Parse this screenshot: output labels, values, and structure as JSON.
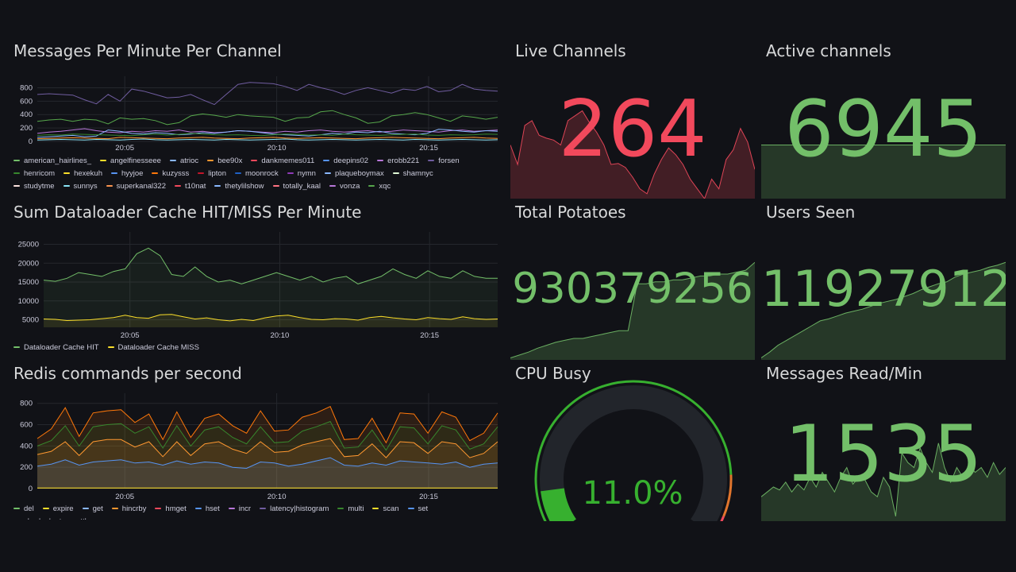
{
  "panels": {
    "messages_per_minute": {
      "title": "Messages Per Minute Per Channel",
      "legend": [
        {
          "name": "american_hairlines_",
          "color": "#73bf69"
        },
        {
          "name": "angelfinesseee",
          "color": "#fade2a"
        },
        {
          "name": "atrioc",
          "color": "#8ab8ff"
        },
        {
          "name": "bee90x",
          "color": "#ff9830"
        },
        {
          "name": "dankmemes011",
          "color": "#f2495c"
        },
        {
          "name": "deepins02",
          "color": "#5794f2"
        },
        {
          "name": "erobb221",
          "color": "#b877d9"
        },
        {
          "name": "forsen",
          "color": "#705da0"
        },
        {
          "name": "henricom",
          "color": "#37872d"
        },
        {
          "name": "hexekuh",
          "color": "#fade2a"
        },
        {
          "name": "hyyjoe",
          "color": "#5794f2"
        },
        {
          "name": "kuzysss",
          "color": "#ff780a"
        },
        {
          "name": "lipton",
          "color": "#c4162a"
        },
        {
          "name": "moonrock",
          "color": "#1f60c4"
        },
        {
          "name": "nymn",
          "color": "#8f3bb8"
        },
        {
          "name": "plaqueboymax",
          "color": "#8ab8ff"
        },
        {
          "name": "shamnyc",
          "color": "#e0f9d7"
        },
        {
          "name": "studytme",
          "color": "#fce2de"
        },
        {
          "name": "sunnys",
          "color": "#8ae5f7"
        },
        {
          "name": "superkanal322",
          "color": "#f9934e"
        },
        {
          "name": "t10nat",
          "color": "#f2495c"
        },
        {
          "name": "thetylilshow",
          "color": "#8ab8ff"
        },
        {
          "name": "totally_kaal",
          "color": "#ff7383"
        },
        {
          "name": "vonza",
          "color": "#b877d9"
        },
        {
          "name": "xqc",
          "color": "#56a64b"
        }
      ],
      "chart_data": {
        "type": "line",
        "y_ticks": [
          "800",
          "600",
          "400",
          "200",
          "0"
        ],
        "x_ticks": [
          "20:05",
          "20:10",
          "20:15"
        ],
        "ylim": [
          0,
          900
        ],
        "series": [
          {
            "name": "forsen",
            "color": "#705da0",
            "values": [
              700,
              710,
              700,
              690,
              620,
              560,
              700,
              600,
              780,
              750,
              700,
              650,
              660,
              700,
              620,
              550,
              700,
              850,
              880,
              870,
              860,
              820,
              760,
              850,
              800,
              760,
              700,
              760,
              800,
              760,
              720,
              780,
              760,
              820,
              740,
              760,
              850,
              780,
              760,
              750
            ]
          },
          {
            "name": "xqc",
            "color": "#56a64b",
            "values": [
              300,
              320,
              330,
              300,
              330,
              320,
              260,
              350,
              330,
              340,
              310,
              250,
              280,
              380,
              410,
              390,
              360,
              400,
              380,
              370,
              360,
              300,
              350,
              360,
              440,
              460,
              400,
              350,
              270,
              290,
              380,
              400,
              430,
              400,
              350,
              300,
              380,
              360,
              330,
              360
            ]
          },
          {
            "name": "erobb221",
            "color": "#b877d9",
            "values": [
              120,
              140,
              150,
              170,
              190,
              160,
              140,
              130,
              150,
              140,
              160,
              150,
              170,
              140,
              150,
              130,
              140,
              160,
              150,
              140,
              130,
              150,
              140,
              160,
              170,
              150,
              140,
              150,
              160,
              140,
              150,
              170,
              160,
              150,
              140,
              160,
              170,
              150,
              160,
              170
            ]
          },
          {
            "name": "atrioc",
            "color": "#8ab8ff",
            "values": [
              60,
              70,
              80,
              90,
              70,
              80,
              170,
              150,
              120,
              110,
              130,
              120,
              100,
              110,
              130,
              120,
              140,
              160,
              150,
              130,
              110,
              100,
              90,
              80,
              100,
              120,
              110,
              140,
              130,
              150,
              120,
              110,
              100,
              120,
              180,
              170,
              150,
              140,
              160,
              150
            ]
          },
          {
            "name": "henricom",
            "color": "#37872d",
            "values": [
              90,
              100,
              95,
              110,
              105,
              100,
              95,
              90,
              85,
              100,
              110,
              95,
              105,
              120,
              110,
              100,
              95,
              100,
              90,
              85,
              100,
              110,
              105,
              95,
              100,
              90,
              110,
              100,
              95,
              90,
              100,
              105,
              110,
              95,
              90,
              100,
              95,
              100,
              110,
              105
            ]
          },
          {
            "name": "bee90x",
            "color": "#ff9830",
            "values": [
              40,
              45,
              50,
              55,
              50,
              45,
              40,
              60,
              55,
              50,
              45,
              40,
              50,
              55,
              60,
              50,
              45,
              40,
              50,
              55,
              60,
              50,
              45,
              50,
              55,
              50,
              45,
              40,
              50,
              55,
              60,
              55,
              50,
              45,
              40,
              50,
              55,
              60,
              50,
              45
            ]
          },
          {
            "name": "sunnys",
            "color": "#8ae5f7",
            "values": [
              20,
              25,
              30,
              25,
              20,
              30,
              25,
              20,
              30,
              35,
              25,
              20,
              25,
              30,
              25,
              20,
              30,
              25,
              20,
              25,
              30,
              35,
              25,
              20,
              25,
              30,
              25,
              20,
              25,
              30,
              25,
              20,
              30,
              25,
              20,
              25,
              30,
              25,
              20,
              25
            ]
          }
        ]
      }
    },
    "dataloader": {
      "title": "Sum Dataloader Cache HIT/MISS Per Minute",
      "legend": [
        {
          "name": "Dataloader Cache HIT",
          "color": "#73bf69"
        },
        {
          "name": "Dataloader Cache MISS",
          "color": "#fade2a"
        }
      ],
      "chart_data": {
        "type": "area",
        "y_ticks": [
          "25000",
          "20000",
          "15000",
          "10000",
          "5000"
        ],
        "x_ticks": [
          "20:05",
          "20:10",
          "20:15"
        ],
        "ylim": [
          3000,
          27000
        ],
        "series": [
          {
            "name": "Dataloader Cache HIT",
            "color": "#73bf69",
            "values": [
              15500,
              15200,
              16000,
              17500,
              17000,
              16500,
              17800,
              18500,
              22500,
              24000,
              22000,
              17000,
              16500,
              19000,
              16500,
              15000,
              15500,
              14500,
              15500,
              16500,
              17500,
              16500,
              15500,
              16500,
              15000,
              16000,
              16500,
              14500,
              15500,
              16500,
              18500,
              17000,
              16000,
              18000,
              16500,
              16000,
              18000,
              16500,
              16000,
              16000
            ]
          },
          {
            "name": "Dataloader Cache MISS",
            "color": "#fade2a",
            "values": [
              5200,
              5100,
              4800,
              4900,
              5000,
              5300,
              5600,
              6200,
              5600,
              5400,
              6300,
              6400,
              5800,
              5200,
              5500,
              5000,
              4700,
              5100,
              4800,
              5500,
              6000,
              6200,
              5600,
              5100,
              5000,
              5300,
              5200,
              4900,
              5600,
              5900,
              5500,
              5200,
              5000,
              5600,
              5300,
              5100,
              5800,
              5300,
              5100,
              5200
            ]
          }
        ]
      }
    },
    "redis": {
      "title": "Redis commands per second",
      "legend": [
        {
          "name": "del",
          "color": "#73bf69"
        },
        {
          "name": "expire",
          "color": "#fade2a"
        },
        {
          "name": "get",
          "color": "#8ab8ff"
        },
        {
          "name": "hincrby",
          "color": "#ff9830"
        },
        {
          "name": "hmget",
          "color": "#f2495c"
        },
        {
          "name": "hset",
          "color": "#5794f2"
        },
        {
          "name": "incr",
          "color": "#b877d9"
        },
        {
          "name": "latency|histogram",
          "color": "#705da0"
        },
        {
          "name": "multi",
          "color": "#37872d"
        },
        {
          "name": "scan",
          "color": "#fade2a"
        },
        {
          "name": "set",
          "color": "#5794f2"
        },
        {
          "name": "slowlog|get",
          "color": "#ff780a"
        },
        {
          "name": "ttl",
          "color": "#c4162a"
        }
      ],
      "chart_data": {
        "type": "area",
        "y_ticks": [
          "800",
          "600",
          "400",
          "200",
          "0"
        ],
        "x_ticks": [
          "20:05",
          "20:10",
          "20:15"
        ],
        "ylim": [
          0,
          850
        ],
        "series": [
          {
            "name": "slowlog|get",
            "color": "#ff780a",
            "values": [
              470,
              560,
              760,
              490,
              710,
              730,
              740,
              620,
              700,
              460,
              720,
              480,
              660,
              700,
              590,
              520,
              730,
              540,
              550,
              670,
              710,
              770,
              460,
              470,
              660,
              430,
              710,
              700,
              520,
              720,
              670,
              450,
              520,
              710
            ]
          },
          {
            "name": "multi",
            "color": "#37872d",
            "values": [
              400,
              450,
              590,
              400,
              580,
              600,
              610,
              520,
              580,
              380,
              590,
              400,
              550,
              580,
              480,
              420,
              580,
              430,
              440,
              540,
              580,
              630,
              380,
              390,
              550,
              360,
              580,
              570,
              420,
              590,
              550,
              370,
              420,
              580
            ]
          },
          {
            "name": "hincrby",
            "color": "#ff9830",
            "values": [
              320,
              350,
              440,
              310,
              440,
              460,
              460,
              390,
              440,
              300,
              440,
              310,
              420,
              440,
              370,
              330,
              440,
              340,
              350,
              410,
              440,
              470,
              300,
              310,
              420,
              290,
              440,
              430,
              330,
              440,
              420,
              290,
              330,
              440
            ]
          },
          {
            "name": "hset",
            "color": "#5794f2",
            "values": [
              210,
              230,
              270,
              220,
              250,
              260,
              270,
              240,
              250,
              220,
              260,
              230,
              250,
              240,
              200,
              190,
              250,
              240,
              210,
              230,
              260,
              290,
              220,
              210,
              240,
              220,
              260,
              250,
              240,
              230,
              250,
              200,
              230,
              240
            ]
          },
          {
            "name": "expire",
            "color": "#fade2a",
            "values": [
              5,
              5,
              5,
              5,
              5,
              5,
              5,
              5,
              5,
              5,
              5,
              5,
              5,
              5,
              5,
              5,
              5,
              5,
              5,
              5,
              5,
              5,
              5,
              5,
              5,
              5,
              5,
              5,
              5,
              5,
              5,
              5,
              5,
              5
            ]
          }
        ]
      }
    },
    "live_channels": {
      "title": "Live Channels",
      "value": "264",
      "color": "#f2495c",
      "spark": [
        0.55,
        0.35,
        0.75,
        0.8,
        0.65,
        0.62,
        0.6,
        0.55,
        0.8,
        0.85,
        0.9,
        0.78,
        0.68,
        0.55,
        0.35,
        0.36,
        0.32,
        0.22,
        0.1,
        0.05,
        0.25,
        0.4,
        0.52,
        0.45,
        0.35,
        0.2,
        0.1,
        0.0,
        0.2,
        0.1,
        0.4,
        0.5,
        0.72,
        0.58,
        0.3
      ]
    },
    "active_channels": {
      "title": "Active channels",
      "value": "6945",
      "color": "#73bf69",
      "spark": [
        0.55,
        0.55,
        0.55,
        0.55,
        0.55,
        0.55,
        0.55,
        0.55,
        0.55,
        0.55
      ]
    },
    "total_potatoes": {
      "title": "Total Potatoes",
      "value": "930379256",
      "color": "#73bf69",
      "spark": [
        0.02,
        0.05,
        0.08,
        0.12,
        0.15,
        0.18,
        0.2,
        0.22,
        0.22,
        0.24,
        0.26,
        0.28,
        0.3,
        0.3,
        0.78,
        0.78,
        0.8,
        0.8,
        0.82,
        0.82,
        0.84,
        0.86,
        0.86,
        0.88,
        0.88,
        0.9,
        0.92,
        1.0
      ]
    },
    "users_seen": {
      "title": "Users Seen",
      "value": "11927912",
      "color": "#73bf69",
      "spark": [
        0.02,
        0.08,
        0.15,
        0.2,
        0.25,
        0.3,
        0.35,
        0.4,
        0.42,
        0.45,
        0.48,
        0.5,
        0.52,
        0.55,
        0.58,
        0.6,
        0.62,
        0.65,
        0.68,
        0.72,
        0.75,
        0.78,
        0.8,
        0.85,
        0.88,
        0.9,
        0.92,
        0.95,
        0.97,
        1.0
      ]
    },
    "cpu_busy": {
      "title": "CPU Busy",
      "value": "11.0%",
      "percent": 11.0,
      "color": "#37b02f"
    },
    "messages_read": {
      "title": "Messages Read/Min",
      "value": "1535",
      "color": "#73bf69",
      "spark": [
        0.25,
        0.3,
        0.35,
        0.32,
        0.4,
        0.3,
        0.38,
        0.32,
        0.45,
        0.35,
        0.5,
        0.4,
        0.3,
        0.45,
        0.55,
        0.38,
        0.45,
        0.42,
        0.3,
        0.25,
        0.45,
        0.35,
        0.05,
        0.7,
        0.6,
        0.55,
        0.75,
        0.6,
        0.5,
        0.8,
        0.55,
        0.4,
        0.55,
        0.45,
        0.58,
        0.5,
        0.55,
        0.45,
        0.6,
        0.48,
        0.55
      ]
    }
  }
}
